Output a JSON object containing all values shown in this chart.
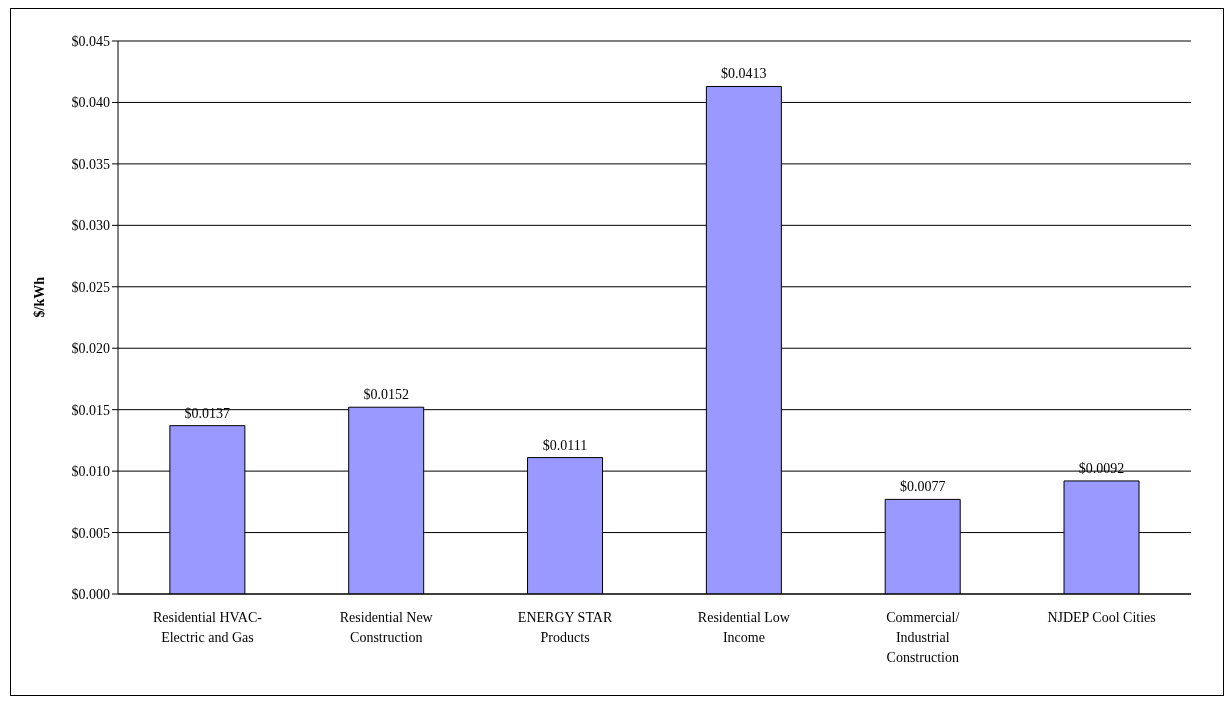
{
  "chart_data": {
    "type": "bar",
    "ylabel": "$/kWh",
    "categories": [
      "Residential HVAC-Electric and Gas",
      "Residential New Construction",
      "ENERGY STAR Products",
      "Residential Low Income",
      "Commercial/Industrial Construction",
      "NJDEP Cool Cities"
    ],
    "values": [
      0.0137,
      0.0152,
      0.0111,
      0.0413,
      0.0077,
      0.0092
    ],
    "value_labels": [
      "$0.0137",
      "$0.0152",
      "$0.0111",
      "$0.0413",
      "$0.0077",
      "$0.0092"
    ],
    "color": "#9999ff",
    "ylim": [
      0,
      0.045
    ],
    "yticks": [
      {
        "value": 0,
        "label": "$0.000"
      },
      {
        "value": 0.005,
        "label": "$0.005"
      },
      {
        "value": 0.01,
        "label": "$0.010"
      },
      {
        "value": 0.015,
        "label": "$0.015"
      },
      {
        "value": 0.02,
        "label": "$0.020"
      },
      {
        "value": 0.025,
        "label": "$0.025"
      },
      {
        "value": 0.03,
        "label": "$0.030"
      },
      {
        "value": 0.035,
        "label": "$0.035"
      },
      {
        "value": 0.04,
        "label": "$0.040"
      },
      {
        "value": 0.045,
        "label": "$0.045"
      }
    ],
    "grid": "y",
    "legend": false
  }
}
